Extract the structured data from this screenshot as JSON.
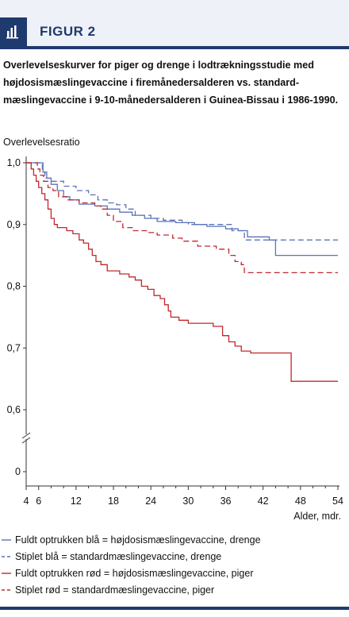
{
  "header": {
    "title": "FIGUR 2",
    "icon": "bar-chart-icon"
  },
  "caption": "Overlevelseskurver for piger og drenge i lodtrækningsstudie med højdosismæslingevaccine i firemånedersalderen vs. standard­mæslingevaccine i 9-10-månedersalderen i Guinea-Bissau i 1986-1990.",
  "colors": {
    "blue": "#5b73b8",
    "red": "#c0282d",
    "navy": "#1f3a6e"
  },
  "chart_data": {
    "type": "line",
    "title": "",
    "ylabel": "Overlevelsesratio",
    "xlabel": "Alder, mdr.",
    "xlim": [
      4,
      54
    ],
    "ylim": [
      0.6,
      1.0
    ],
    "y_axis_break": true,
    "x_ticks": [
      "4",
      "6",
      "12",
      "18",
      "24",
      "30",
      "36",
      "42",
      "48",
      "54"
    ],
    "x_tick_values": [
      4,
      6,
      12,
      18,
      24,
      30,
      36,
      42,
      48,
      54
    ],
    "y_ticks": [
      "1,0",
      "0,9",
      "0,8",
      "0,7",
      "0,6",
      "0"
    ],
    "y_tick_values": [
      1.0,
      0.9,
      0.8,
      0.7,
      0.6,
      0
    ],
    "series": [
      {
        "name": "Fuldt optrukken blå = højdosismæslingevaccine, drenge",
        "color": "#5b73b8",
        "style": "solid",
        "points": [
          [
            4,
            1.0
          ],
          [
            6.4,
            1.0
          ],
          [
            6.7,
            0.985
          ],
          [
            7.3,
            0.975
          ],
          [
            8,
            0.965
          ],
          [
            9,
            0.955
          ],
          [
            10,
            0.945
          ],
          [
            11,
            0.94
          ],
          [
            12.5,
            0.933
          ],
          [
            15,
            0.93
          ],
          [
            17,
            0.925
          ],
          [
            19,
            0.92
          ],
          [
            21,
            0.915
          ],
          [
            23,
            0.91
          ],
          [
            25,
            0.905
          ],
          [
            28,
            0.903
          ],
          [
            31,
            0.9
          ],
          [
            33,
            0.897
          ],
          [
            36,
            0.893
          ],
          [
            38,
            0.89
          ],
          [
            39.5,
            0.88
          ],
          [
            43,
            0.875
          ],
          [
            44,
            0.85
          ],
          [
            54,
            0.85
          ]
        ]
      },
      {
        "name": "Stiplet blå = standardmæslingevaccine, drenge",
        "color": "#5b73b8",
        "style": "dashed",
        "points": [
          [
            4,
            1.0
          ],
          [
            6.3,
            1.0
          ],
          [
            6.6,
            0.985
          ],
          [
            7,
            0.975
          ],
          [
            8,
            0.97
          ],
          [
            10,
            0.962
          ],
          [
            12,
            0.955
          ],
          [
            14,
            0.948
          ],
          [
            15.5,
            0.94
          ],
          [
            17,
            0.935
          ],
          [
            18.5,
            0.932
          ],
          [
            20,
            0.925
          ],
          [
            21.5,
            0.915
          ],
          [
            24,
            0.91
          ],
          [
            26,
            0.907
          ],
          [
            29,
            0.903
          ],
          [
            30,
            0.9
          ],
          [
            34,
            0.9
          ],
          [
            37,
            0.89
          ],
          [
            39,
            0.875
          ],
          [
            44,
            0.875
          ],
          [
            54,
            0.875
          ]
        ]
      },
      {
        "name": "Fuldt optrukken rød = højdosismæslingevaccine, piger",
        "color": "#c0282d",
        "style": "solid",
        "points": [
          [
            4,
            1.0
          ],
          [
            4.8,
            0.99
          ],
          [
            5.2,
            0.98
          ],
          [
            5.6,
            0.97
          ],
          [
            6,
            0.96
          ],
          [
            6.5,
            0.95
          ],
          [
            7,
            0.94
          ],
          [
            7.5,
            0.925
          ],
          [
            8,
            0.91
          ],
          [
            8.5,
            0.9
          ],
          [
            9,
            0.895
          ],
          [
            10.5,
            0.89
          ],
          [
            11.5,
            0.885
          ],
          [
            12.5,
            0.875
          ],
          [
            13.2,
            0.87
          ],
          [
            14,
            0.86
          ],
          [
            14.6,
            0.85
          ],
          [
            15.2,
            0.84
          ],
          [
            16,
            0.835
          ],
          [
            17,
            0.825
          ],
          [
            19,
            0.82
          ],
          [
            20.5,
            0.815
          ],
          [
            21.5,
            0.81
          ],
          [
            22.5,
            0.8
          ],
          [
            23.5,
            0.795
          ],
          [
            24.5,
            0.785
          ],
          [
            25.5,
            0.78
          ],
          [
            26.2,
            0.77
          ],
          [
            26.8,
            0.76
          ],
          [
            27.2,
            0.75
          ],
          [
            28.5,
            0.745
          ],
          [
            30,
            0.74
          ],
          [
            32,
            0.74
          ],
          [
            34,
            0.735
          ],
          [
            35.5,
            0.72
          ],
          [
            36.5,
            0.71
          ],
          [
            37.5,
            0.703
          ],
          [
            38.5,
            0.695
          ],
          [
            40,
            0.692
          ],
          [
            46.5,
            0.692
          ],
          [
            46.5,
            0.646
          ],
          [
            54,
            0.646
          ]
        ]
      },
      {
        "name": "Stiplet rød = standardmæslingevaccine, piger",
        "color": "#c0282d",
        "style": "dashed",
        "points": [
          [
            4,
            1.0
          ],
          [
            5.5,
            1.0
          ],
          [
            5.8,
            0.99
          ],
          [
            6.2,
            0.98
          ],
          [
            6.8,
            0.97
          ],
          [
            7.5,
            0.96
          ],
          [
            8.3,
            0.955
          ],
          [
            9.2,
            0.945
          ],
          [
            10.5,
            0.94
          ],
          [
            12.5,
            0.935
          ],
          [
            15,
            0.93
          ],
          [
            16,
            0.925
          ],
          [
            17,
            0.915
          ],
          [
            18,
            0.905
          ],
          [
            19.5,
            0.895
          ],
          [
            21,
            0.89
          ],
          [
            23.5,
            0.887
          ],
          [
            25,
            0.883
          ],
          [
            27.5,
            0.878
          ],
          [
            29,
            0.873
          ],
          [
            31.5,
            0.865
          ],
          [
            34.5,
            0.86
          ],
          [
            36.5,
            0.85
          ],
          [
            37.5,
            0.84
          ],
          [
            38.5,
            0.835
          ],
          [
            39,
            0.822
          ],
          [
            46,
            0.822
          ],
          [
            54,
            0.822
          ]
        ]
      }
    ],
    "legend": [
      {
        "text": "Fuldt optrukken blå = højdosismæslingevaccine, drenge",
        "color": "#5b73b8",
        "style": "solid"
      },
      {
        "text": "Stiplet blå = standardmæslingevaccine, drenge",
        "color": "#5b73b8",
        "style": "dashed"
      },
      {
        "text": "Fuldt optrukken rød = højdosismæslingevaccine, piger",
        "color": "#c0282d",
        "style": "solid"
      },
      {
        "text": "Stiplet rød = standardmæslingevaccine, piger",
        "color": "#c0282d",
        "style": "dashed"
      }
    ]
  }
}
